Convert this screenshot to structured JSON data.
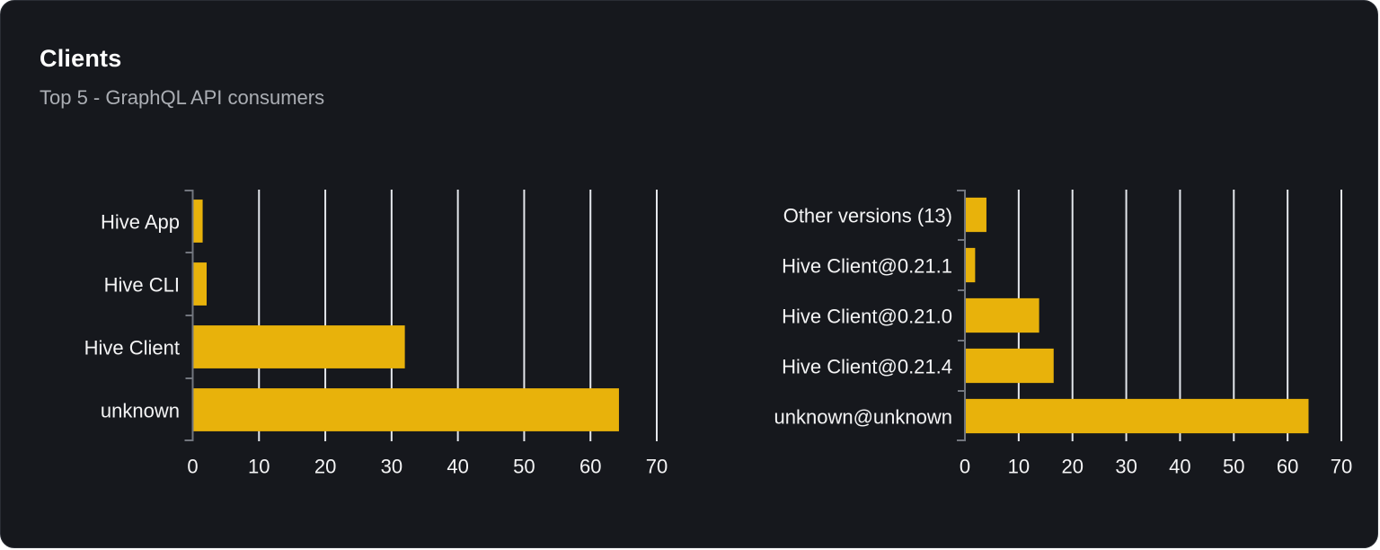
{
  "card": {
    "title": "Clients",
    "subtitle": "Top 5 - GraphQL API consumers"
  },
  "colors": {
    "background": "#16181d",
    "card_border": "#2a2d34",
    "bar": "#e8b20b",
    "grid": "#e4e7ec",
    "axis": "#72767e",
    "label": "#f4f4f5",
    "title": "#ffffff",
    "subtitle": "#abaeb4"
  },
  "chart_data": [
    {
      "type": "bar",
      "name": "clients-by-name",
      "orientation": "horizontal",
      "categories": [
        "Hive App",
        "Hive CLI",
        "Hive Client",
        "unknown"
      ],
      "values": [
        1.5,
        2.1,
        32,
        64.3
      ],
      "xlim": [
        0,
        70
      ],
      "xticks": [
        0,
        10,
        20,
        30,
        40,
        50,
        60,
        70
      ],
      "grid": "vertical",
      "legend": "none",
      "xlabel": "",
      "ylabel": ""
    },
    {
      "type": "bar",
      "name": "clients-by-version",
      "orientation": "horizontal",
      "categories": [
        "Other versions (13)",
        "Hive Client@0.21.1",
        "Hive Client@0.21.0",
        "Hive Client@0.21.4",
        "unknown@unknown"
      ],
      "values": [
        4.0,
        1.9,
        13.8,
        16.5,
        63.9
      ],
      "xlim": [
        0,
        70
      ],
      "xticks": [
        0,
        10,
        20,
        30,
        40,
        50,
        60,
        70
      ],
      "grid": "vertical",
      "legend": "none",
      "xlabel": "",
      "ylabel": ""
    }
  ]
}
